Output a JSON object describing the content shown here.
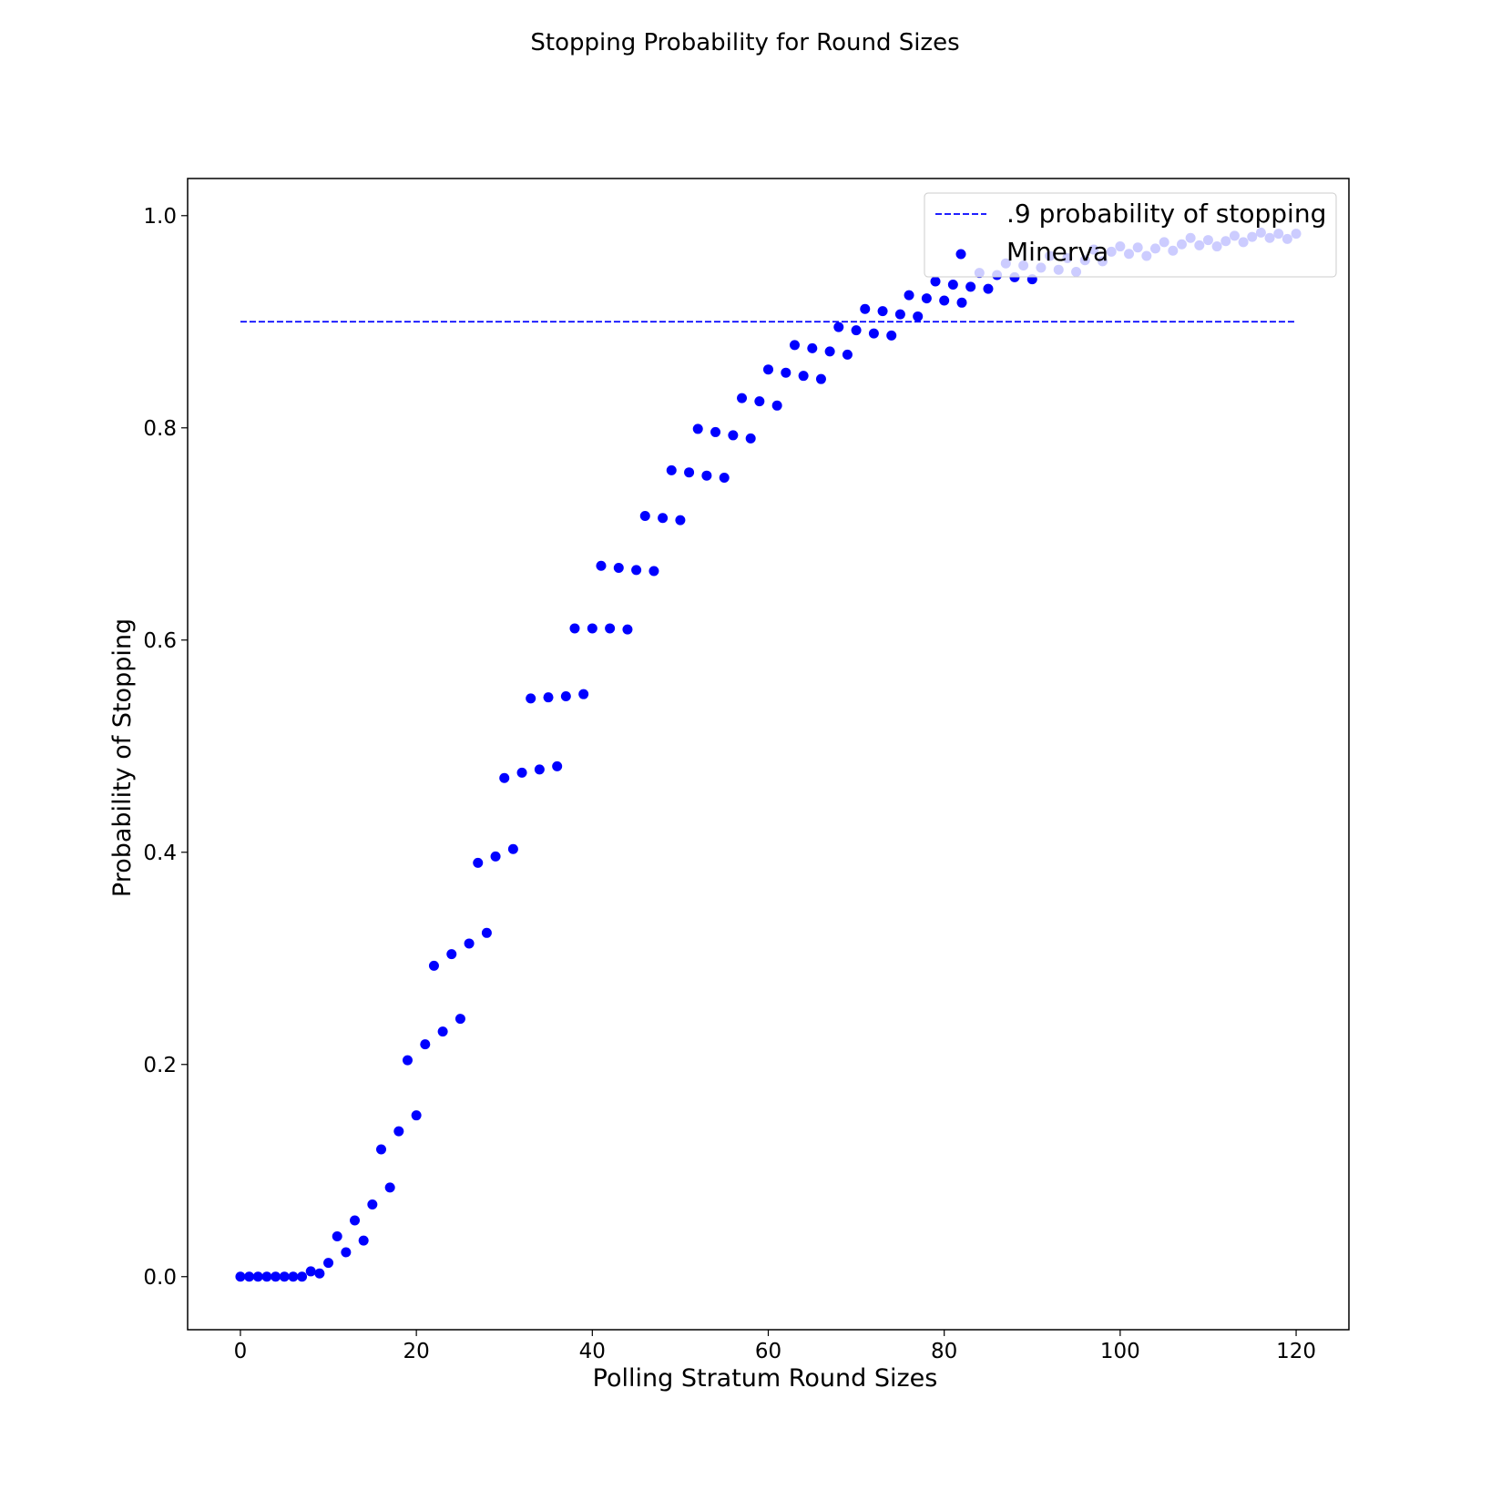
{
  "chart_data": {
    "type": "scatter",
    "title": "Stopping Probability for Round Sizes",
    "xlabel": "Polling Stratum Round Sizes",
    "ylabel": "Probability of Stopping",
    "xlim": [
      -6,
      126
    ],
    "ylim": [
      -0.05,
      1.035
    ],
    "x_ticks": [
      0,
      20,
      40,
      60,
      80,
      100,
      120
    ],
    "y_ticks": [
      0.0,
      0.2,
      0.4,
      0.6,
      0.8,
      1.0
    ],
    "x_tick_labels": [
      "0",
      "20",
      "40",
      "60",
      "80",
      "100",
      "120"
    ],
    "y_tick_labels": [
      "0.0",
      "0.2",
      "0.4",
      "0.6",
      "0.8",
      "1.0"
    ],
    "grid": false,
    "legend_position": "top-right",
    "colors": {
      "series": "#0000ff",
      "frame": "#000000",
      "background": "#ffffff"
    },
    "reference_line": {
      "name": ".9 probability of stopping",
      "y": 0.9,
      "x_range": [
        0,
        120
      ],
      "style": "dashed"
    },
    "series": [
      {
        "name": "Minerva",
        "x": [
          0,
          1,
          2,
          3,
          4,
          5,
          6,
          7,
          8,
          9,
          10,
          11,
          12,
          13,
          14,
          15,
          16,
          17,
          18,
          19,
          20,
          21,
          22,
          23,
          24,
          25,
          26,
          27,
          28,
          29,
          30,
          31,
          32,
          33,
          34,
          35,
          36,
          37,
          38,
          39,
          40,
          41,
          42,
          43,
          44,
          45,
          46,
          47,
          48,
          49,
          50,
          51,
          52,
          53,
          54,
          55,
          56,
          57,
          58,
          59,
          60,
          61,
          62,
          63,
          64,
          65,
          66,
          67,
          68,
          69,
          70,
          71,
          72,
          73,
          74,
          75,
          76,
          77,
          78,
          79,
          80,
          81,
          82,
          83,
          84,
          85,
          86,
          87,
          88,
          89,
          90,
          91,
          92,
          93,
          94,
          95,
          96,
          97,
          98,
          99,
          100,
          101,
          102,
          103,
          104,
          105,
          106,
          107,
          108,
          109,
          110,
          111,
          112,
          113,
          114,
          115,
          116,
          117,
          118,
          119,
          120
        ],
        "y": [
          0.0,
          0.0,
          0.0,
          0.0,
          0.0,
          0.0,
          0.0,
          0.0,
          0.005,
          0.003,
          0.013,
          0.038,
          0.023,
          0.053,
          0.034,
          0.068,
          0.12,
          0.084,
          0.137,
          0.204,
          0.152,
          0.219,
          0.293,
          0.231,
          0.304,
          0.243,
          0.314,
          0.39,
          0.324,
          0.396,
          0.47,
          0.403,
          0.475,
          0.545,
          0.478,
          0.546,
          0.481,
          0.547,
          0.611,
          0.549,
          0.611,
          0.67,
          0.611,
          0.668,
          0.61,
          0.666,
          0.717,
          0.665,
          0.715,
          0.76,
          0.713,
          0.758,
          0.799,
          0.755,
          0.796,
          0.753,
          0.793,
          0.828,
          0.79,
          0.825,
          0.855,
          0.821,
          0.852,
          0.878,
          0.849,
          0.875,
          0.846,
          0.872,
          0.895,
          0.869,
          0.892,
          0.912,
          0.889,
          0.91,
          0.887,
          0.907,
          0.925,
          0.905,
          0.922,
          0.938,
          0.92,
          0.935,
          0.918,
          0.933,
          0.946,
          0.931,
          0.944,
          0.955,
          0.942,
          0.953,
          0.94,
          0.951,
          0.962,
          0.949,
          0.96,
          0.947,
          0.958,
          0.968,
          0.957,
          0.966,
          0.971,
          0.964,
          0.97,
          0.962,
          0.969,
          0.975,
          0.967,
          0.973,
          0.979,
          0.972,
          0.977,
          0.971,
          0.976,
          0.981,
          0.975,
          0.98,
          0.984,
          0.979,
          0.983,
          0.978,
          0.983
        ]
      }
    ]
  }
}
